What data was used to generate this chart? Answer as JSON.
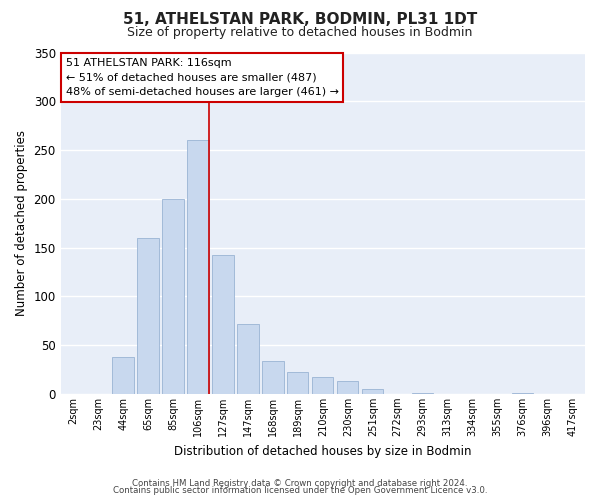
{
  "title": "51, ATHELSTAN PARK, BODMIN, PL31 1DT",
  "subtitle": "Size of property relative to detached houses in Bodmin",
  "xlabel": "Distribution of detached houses by size in Bodmin",
  "ylabel": "Number of detached properties",
  "footer_line1": "Contains HM Land Registry data © Crown copyright and database right 2024.",
  "footer_line2": "Contains public sector information licensed under the Open Government Licence v3.0.",
  "bar_labels": [
    "2sqm",
    "23sqm",
    "44sqm",
    "65sqm",
    "85sqm",
    "106sqm",
    "127sqm",
    "147sqm",
    "168sqm",
    "189sqm",
    "210sqm",
    "230sqm",
    "251sqm",
    "272sqm",
    "293sqm",
    "313sqm",
    "334sqm",
    "355sqm",
    "376sqm",
    "396sqm",
    "417sqm"
  ],
  "bar_values": [
    0,
    0,
    38,
    160,
    200,
    260,
    142,
    72,
    34,
    22,
    17,
    13,
    5,
    0,
    1,
    0,
    0,
    0,
    1,
    0,
    0
  ],
  "bar_color": "#c8d8ee",
  "bar_edge_color": "#9ab4d4",
  "vline_index": 5,
  "vline_color": "#cc0000",
  "ylim": [
    0,
    350
  ],
  "yticks": [
    0,
    50,
    100,
    150,
    200,
    250,
    300,
    350
  ],
  "annotation_title": "51 ATHELSTAN PARK: 116sqm",
  "annotation_line1": "← 51% of detached houses are smaller (487)",
  "annotation_line2": "48% of semi-detached houses are larger (461) →",
  "annotation_box_color": "#ffffff",
  "annotation_box_edge": "#cc0000",
  "bg_color": "#ffffff",
  "plot_bg_color": "#e8eef8",
  "grid_color": "#ffffff",
  "title_fontsize": 11,
  "subtitle_fontsize": 9
}
